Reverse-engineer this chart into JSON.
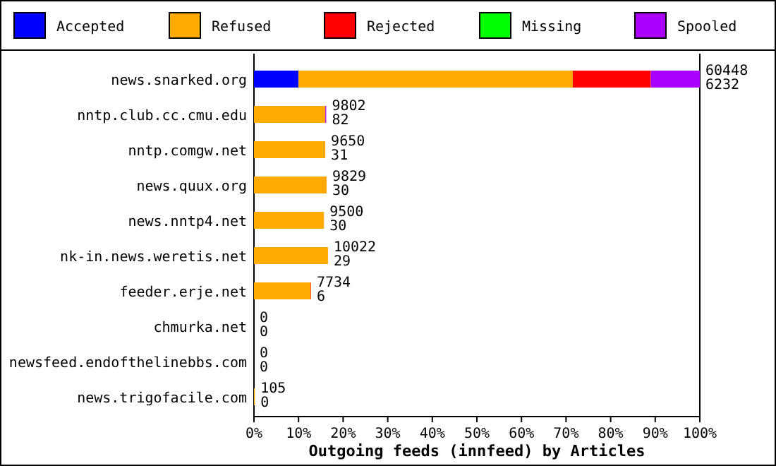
{
  "chart_data": {
    "type": "bar",
    "orientation": "horizontal",
    "stacked": true,
    "xlabel": "Outgoing feeds (innfeed) by Articles",
    "legend": "top",
    "categories": [
      "news.snarked.org",
      "nntp.club.cc.cmu.edu",
      "nntp.comgw.net",
      "news.quux.org",
      "news.nntp4.net",
      "nk-in.news.weretis.net",
      "feeder.erje.net",
      "chmurka.net",
      "newsfeed.endofthelinebbs.com",
      "news.trigofacile.com"
    ],
    "series": [
      {
        "name": "Accepted",
        "color": "#0000ff",
        "values": [
          10,
          0,
          0,
          0,
          0,
          0,
          0,
          0,
          0,
          0
        ]
      },
      {
        "name": "Refused",
        "color": "#ffaa00",
        "values": [
          61.5,
          16,
          16,
          16.3,
          15.7,
          16.6,
          12.7,
          0,
          0,
          0.2
        ]
      },
      {
        "name": "Rejected",
        "color": "#ff0000",
        "values": [
          17.5,
          0,
          0,
          0,
          0,
          0,
          0.1,
          0,
          0,
          0
        ]
      },
      {
        "name": "Missing",
        "color": "#00ff00",
        "values": [
          0,
          0,
          0,
          0,
          0,
          0,
          0,
          0,
          0,
          0
        ]
      },
      {
        "name": "Spooled",
        "color": "#aa00ff",
        "values": [
          11,
          0.2,
          0,
          0,
          0,
          0,
          0,
          0,
          0,
          0
        ]
      }
    ],
    "totals": [
      "60448\n6232",
      "9802\n82",
      "9650\n31",
      "9829\n30",
      "9500\n30",
      "10022\n29",
      "7734\n6",
      "0\n0",
      "0\n0",
      "105\n0"
    ],
    "xlim": [
      0,
      100
    ],
    "xticks": [
      {
        "value": 0,
        "label": "0%"
      },
      {
        "value": 10,
        "label": "10%"
      },
      {
        "value": 20,
        "label": "20%"
      },
      {
        "value": 30,
        "label": "30%"
      },
      {
        "value": 40,
        "label": "40%"
      },
      {
        "value": 50,
        "label": "50%"
      },
      {
        "value": 60,
        "label": "60%"
      },
      {
        "value": 70,
        "label": "70%"
      },
      {
        "value": 80,
        "label": "80%"
      },
      {
        "value": 90,
        "label": "90%"
      },
      {
        "value": 100,
        "label": "100%"
      }
    ]
  }
}
